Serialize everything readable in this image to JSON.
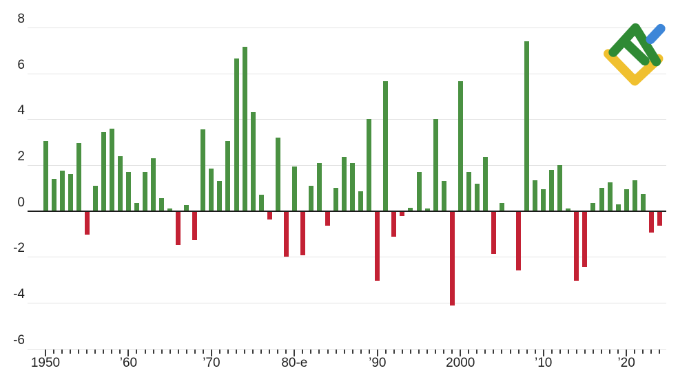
{
  "page": {
    "background": "#ffffff"
  },
  "logo": {
    "name": "litefinance-logo",
    "colors": {
      "green": "#2f8a34",
      "blue": "#3d86d8",
      "yellow": "#f0c02f"
    }
  },
  "chart_data": {
    "type": "bar",
    "title": "",
    "xlabel": "",
    "ylabel": "",
    "x": [
      1950,
      1951,
      1952,
      1953,
      1954,
      1955,
      1956,
      1957,
      1958,
      1959,
      1960,
      1961,
      1962,
      1963,
      1964,
      1965,
      1966,
      1967,
      1968,
      1969,
      1970,
      1971,
      1972,
      1973,
      1974,
      1975,
      1976,
      1977,
      1978,
      1979,
      1980,
      1981,
      1982,
      1983,
      1984,
      1985,
      1986,
      1987,
      1988,
      1989,
      1990,
      1991,
      1992,
      1993,
      1994,
      1995,
      1996,
      1997,
      1998,
      1999,
      2000,
      2001,
      2002,
      2003,
      2004,
      2005,
      2006,
      2007,
      2008,
      2009,
      2010,
      2011,
      2012,
      2013,
      2014,
      2015,
      2016,
      2017,
      2018,
      2019,
      2020,
      2021,
      2022,
      2023,
      2024
    ],
    "values": [
      3.05,
      1.4,
      1.75,
      1.6,
      2.95,
      -1.0,
      1.1,
      3.45,
      3.6,
      2.4,
      1.7,
      0.35,
      1.7,
      2.3,
      0.55,
      0.1,
      -1.45,
      0.25,
      -1.25,
      3.55,
      1.85,
      1.3,
      3.05,
      6.65,
      7.15,
      4.3,
      0.7,
      -0.35,
      3.2,
      -1.95,
      1.95,
      -1.9,
      1.1,
      2.1,
      -0.6,
      1.0,
      2.35,
      2.1,
      0.85,
      4.0,
      -3.0,
      5.65,
      -1.1,
      -0.2,
      0.15,
      1.7,
      0.1,
      4.0,
      1.3,
      -4.1,
      5.65,
      1.7,
      1.2,
      2.35,
      -1.85,
      0.35,
      0.0,
      -2.55,
      7.4,
      1.35,
      0.95,
      1.8,
      2.0,
      0.1,
      -3.0,
      -2.4,
      0.35,
      1.0,
      1.25,
      0.3,
      0.95,
      1.35,
      0.75,
      -0.9,
      -0.6
    ],
    "bar_colors": {
      "positive": "#4a9142",
      "negative": "#c32134"
    },
    "ylim": [
      -6,
      8
    ],
    "yticks": [
      8,
      6,
      4,
      2,
      0,
      -2,
      -4,
      -6
    ],
    "ytick_labels": [
      "8",
      "6",
      "4",
      "2",
      "0",
      "-2",
      "-4",
      "-6"
    ],
    "x_labels": {
      "1950": "1950",
      "1960": "’60",
      "1970": "’70",
      "1980": "80-е",
      "1990": "’90",
      "2000": "2000",
      "2010": "’10",
      "2020": "’20"
    },
    "grid": true,
    "legend": "none",
    "colors": {
      "gridline": "#e3e3e3",
      "zero_line": "#1c1c1c",
      "tick": "#3a3a3a",
      "label": "#1f1f1f"
    }
  }
}
